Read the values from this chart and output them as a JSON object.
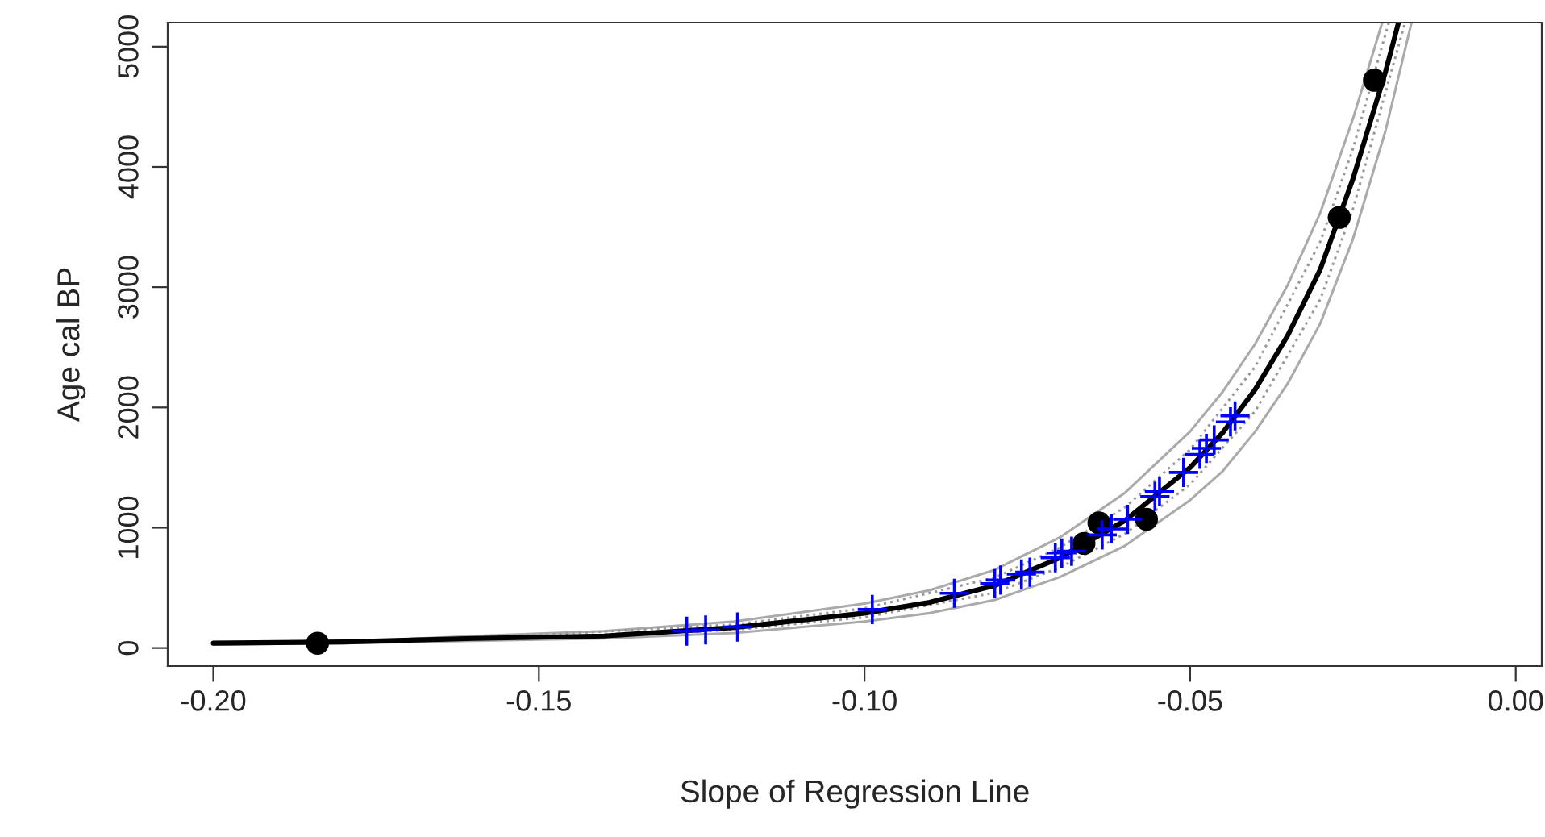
{
  "chart_data": {
    "type": "line",
    "xlabel": "Slope of Regression Line",
    "ylabel": "Age cal BP",
    "xlim": [
      -0.207,
      0.004
    ],
    "ylim": [
      -150,
      5200
    ],
    "xticks": [
      {
        "value": -0.2,
        "label": "-0.20"
      },
      {
        "value": -0.15,
        "label": "-0.15"
      },
      {
        "value": -0.1,
        "label": "-0.10"
      },
      {
        "value": -0.05,
        "label": "-0.05"
      },
      {
        "value": 0.0,
        "label": "0.00"
      }
    ],
    "yticks": [
      0,
      1000,
      2000,
      3000,
      4000,
      5000
    ],
    "grid": false,
    "series": [
      {
        "color": "#aaaaaa",
        "line_style": "solid",
        "marker": "none",
        "x": [
          -0.2,
          -0.18,
          -0.16,
          -0.14,
          -0.12,
          -0.1,
          -0.09,
          -0.08,
          -0.07,
          -0.06,
          -0.05,
          -0.045,
          -0.04,
          -0.035,
          -0.03,
          -0.025,
          -0.0205
        ],
        "values": [
          50,
          50,
          100,
          140,
          220,
          370,
          480,
          650,
          920,
          1290,
          1800,
          2130,
          2530,
          3020,
          3620,
          4400,
          5200
        ]
      },
      {
        "color": "#aaaaaa",
        "line_style": "solid",
        "marker": "none",
        "x": [
          -0.2,
          -0.18,
          -0.16,
          -0.14,
          -0.12,
          -0.1,
          -0.09,
          -0.08,
          -0.07,
          -0.06,
          -0.05,
          -0.045,
          -0.04,
          -0.035,
          -0.03,
          -0.025,
          -0.02,
          -0.016
        ],
        "values": [
          30,
          40,
          60,
          80,
          125,
          220,
          290,
          400,
          590,
          850,
          1230,
          1470,
          1800,
          2200,
          2700,
          3400,
          4300,
          5200
        ]
      },
      {
        "color": "#999999",
        "line_style": "dotted",
        "marker": "none",
        "x": [
          -0.2,
          -0.16,
          -0.12,
          -0.1,
          -0.08,
          -0.07,
          -0.06,
          -0.05,
          -0.04,
          -0.03,
          -0.025,
          -0.0195
        ],
        "values": [
          40,
          80,
          195,
          330,
          585,
          835,
          1170,
          1650,
          2340,
          3380,
          4150,
          5200
        ]
      },
      {
        "color": "#999999",
        "line_style": "dotted",
        "marker": "none",
        "x": [
          -0.2,
          -0.16,
          -0.12,
          -0.1,
          -0.08,
          -0.07,
          -0.06,
          -0.05,
          -0.04,
          -0.03,
          -0.025,
          -0.017
        ],
        "values": [
          40,
          70,
          150,
          255,
          460,
          670,
          950,
          1360,
          1970,
          2900,
          3650,
          5200
        ]
      },
      {
        "color": "#000000",
        "line_style": "solid",
        "marker": "none",
        "x": [
          -0.2,
          -0.18,
          -0.16,
          -0.14,
          -0.12,
          -0.1,
          -0.09,
          -0.08,
          -0.07,
          -0.06,
          -0.055,
          -0.05,
          -0.045,
          -0.04,
          -0.035,
          -0.03,
          -0.025,
          -0.02,
          -0.018
        ],
        "values": [
          40,
          50,
          80,
          100,
          170,
          290,
          380,
          520,
          750,
          1060,
          1280,
          1500,
          1790,
          2150,
          2600,
          3150,
          3900,
          4790,
          5200
        ]
      },
      {
        "type": "scatter",
        "color": "#000000",
        "marker": "circle",
        "x": [
          -0.184,
          -0.064,
          -0.0663,
          -0.0567,
          -0.0271,
          -0.0217
        ],
        "values": [
          40,
          1040,
          870,
          1070,
          3580,
          4720
        ]
      },
      {
        "type": "scatter",
        "color": "#0000ff",
        "marker": "cross",
        "x": [
          -0.1273,
          -0.1244,
          -0.1195,
          -0.0988,
          -0.0862,
          -0.08,
          -0.0791,
          -0.0759,
          -0.0746,
          -0.0707,
          -0.0697,
          -0.0682,
          -0.0635,
          -0.0621,
          -0.0596,
          -0.0554,
          -0.0547,
          -0.051,
          -0.0485,
          -0.0475,
          -0.0463,
          -0.0438,
          -0.0431
        ],
        "values": [
          140,
          150,
          175,
          320,
          455,
          535,
          565,
          615,
          630,
          750,
          790,
          805,
          940,
          990,
          1070,
          1260,
          1300,
          1460,
          1610,
          1660,
          1730,
          1880,
          1930
        ]
      }
    ]
  }
}
